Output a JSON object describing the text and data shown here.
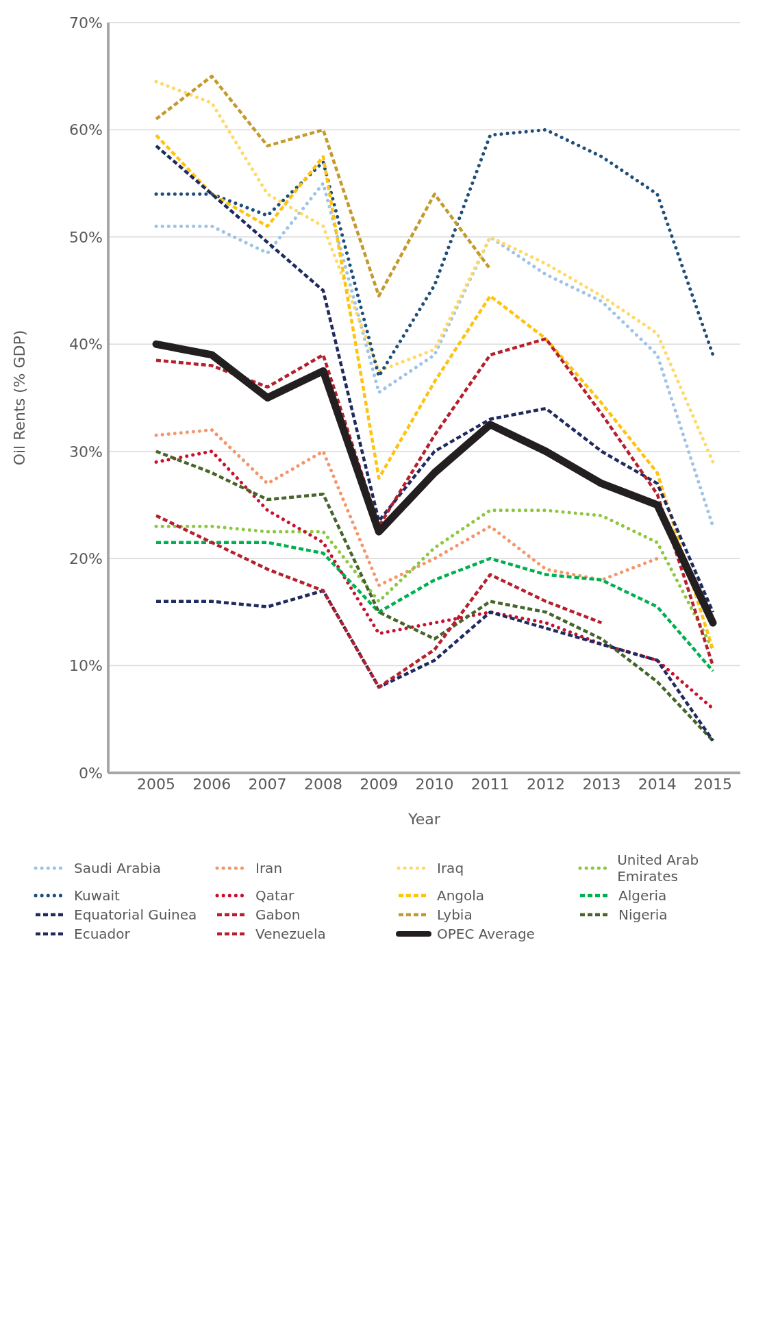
{
  "chart_data": {
    "type": "line",
    "xlabel": "Year",
    "ylabel": "Oil Rents (% GDP)",
    "categories": [
      "2005",
      "2006",
      "2007",
      "2008",
      "2009",
      "2010",
      "2011",
      "2012",
      "2013",
      "2014",
      "2015"
    ],
    "ylim": [
      0,
      70
    ],
    "yticks": [
      {
        "value": 0,
        "label": "0%"
      },
      {
        "value": 10,
        "label": "10%"
      },
      {
        "value": 20,
        "label": "20%"
      },
      {
        "value": 30,
        "label": "30%"
      },
      {
        "value": 40,
        "label": "40%"
      },
      {
        "value": 50,
        "label": "50%"
      },
      {
        "value": 60,
        "label": "60%"
      },
      {
        "value": 70,
        "label": "70%"
      }
    ],
    "grid": "y",
    "legend": "bottom",
    "marker": "none",
    "series": [
      {
        "name": "Saudi Arabia",
        "color": "#9dc3e6",
        "line_style": "dotted",
        "values": [
          51,
          51,
          48.5,
          55,
          35.5,
          39,
          50,
          46.5,
          44,
          39,
          23
        ]
      },
      {
        "name": "Iran",
        "color": "#f4956a",
        "line_style": "dotted",
        "values": [
          31.5,
          32,
          27,
          30,
          17.5,
          20,
          23,
          19,
          18,
          20,
          null
        ]
      },
      {
        "name": "Iraq",
        "color": "#ffd966",
        "line_style": "dotted",
        "values": [
          64.5,
          62.5,
          54,
          51,
          37.5,
          39.5,
          50,
          47.5,
          44.5,
          41,
          29
        ]
      },
      {
        "name": "United Arab Emirates",
        "color": "#8dc63f",
        "line_style": "dotted",
        "values": [
          23,
          23,
          22.5,
          22.5,
          16,
          21,
          24.5,
          24.5,
          24,
          21.5,
          11.5
        ]
      },
      {
        "name": "Kuwait",
        "color": "#1f4e79",
        "line_style": "dotted",
        "values": [
          54,
          54,
          52,
          57,
          37,
          45.5,
          59.5,
          60,
          57.5,
          54,
          39
        ]
      },
      {
        "name": "Qatar",
        "color": "#c8102e",
        "line_style": "dotted",
        "values": [
          29,
          30,
          24.5,
          21.5,
          13,
          14,
          15,
          14,
          12,
          10.5,
          6
        ]
      },
      {
        "name": "Angola",
        "color": "#ffc20e",
        "line_style": "dashed",
        "values": [
          59.5,
          54,
          51,
          57.5,
          27.5,
          36.5,
          44.5,
          40.5,
          34.5,
          28,
          11.5
        ]
      },
      {
        "name": "Algeria",
        "color": "#00b050",
        "line_style": "dashed",
        "values": [
          21.5,
          21.5,
          21.5,
          20.5,
          15,
          18,
          20,
          18.5,
          18,
          15.5,
          9.5
        ]
      },
      {
        "name": "Equatorial Guinea",
        "color": "#1f2a5e",
        "line_style": "dashed",
        "values": [
          58.5,
          54,
          49.5,
          45,
          23.5,
          30,
          33,
          34,
          30,
          27,
          15
        ]
      },
      {
        "name": "Gabon",
        "color": "#b5202e",
        "line_style": "dashed",
        "values": [
          38.5,
          38,
          36,
          39,
          23,
          31.5,
          39,
          40.5,
          33.5,
          26,
          10
        ]
      },
      {
        "name": "Lybia",
        "color": "#c39a2d",
        "line_style": "dashed",
        "values": [
          61,
          65,
          58.5,
          60,
          44.5,
          54,
          47,
          null,
          null,
          null,
          null
        ]
      },
      {
        "name": "Nigeria",
        "color": "#46652a",
        "line_style": "dashed",
        "values": [
          30,
          28,
          25.5,
          26,
          15,
          12.5,
          16,
          15,
          12.5,
          8.5,
          3
        ]
      },
      {
        "name": "Ecuador",
        "color": "#1f2a5e",
        "line_style": "dashed",
        "values": [
          16,
          16,
          15.5,
          17,
          8,
          10.5,
          15,
          13.5,
          12,
          10.5,
          3
        ]
      },
      {
        "name": "Venezuela",
        "color": "#b5202e",
        "line_style": "dashed",
        "values": [
          24,
          21.5,
          19,
          17,
          8,
          11.5,
          18.5,
          16,
          14,
          null,
          null
        ]
      },
      {
        "name": "OPEC Average",
        "color": "#231f20",
        "line_style": "solid",
        "values": [
          40,
          39,
          35,
          37.5,
          22.5,
          28,
          32.5,
          30,
          27,
          25,
          14
        ]
      }
    ]
  }
}
